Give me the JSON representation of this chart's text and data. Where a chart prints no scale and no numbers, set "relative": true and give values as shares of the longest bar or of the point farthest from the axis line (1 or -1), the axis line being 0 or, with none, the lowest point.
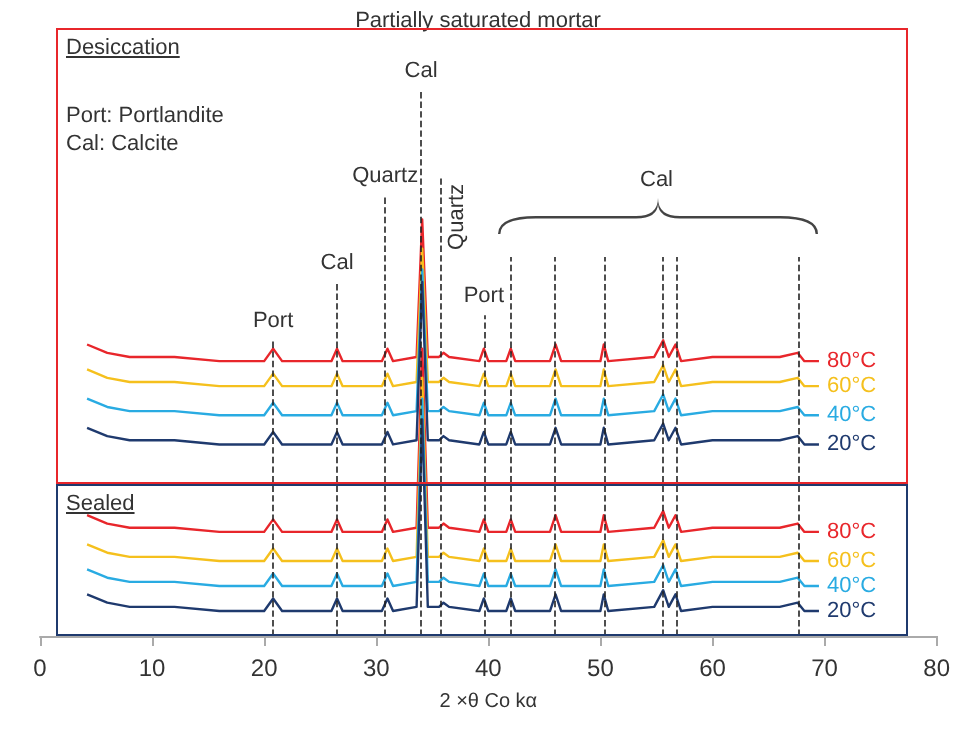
{
  "chart_data": {
    "type": "line",
    "title": "Partially saturated mortar",
    "xlabel": "2 ×θ Co kα",
    "relative": true,
    "legend": false,
    "grid": false,
    "marker": "none",
    "annotations": [
      "Port: Portlandite",
      "Cal: Calcite",
      "Desiccation",
      "Sealed",
      "Cal"
    ],
    "xlim": [
      0,
      80
    ],
    "xticks": [
      0,
      10,
      20,
      30,
      40,
      50,
      60,
      70,
      80
    ],
    "x": [
      4.2,
      6,
      8,
      12,
      16,
      20,
      20.8,
      21.6,
      26,
      26.5,
      27,
      30.5,
      31,
      31.5,
      33.6,
      34.1,
      34.6,
      35.6,
      36,
      36.5,
      39.2,
      39.6,
      40,
      41.6,
      42,
      42.4,
      45.5,
      46,
      46.5,
      50,
      50.3,
      50.7,
      54.8,
      55.6,
      56.1,
      56.7,
      57.2,
      60,
      66,
      67.6,
      68.2,
      69.5
    ],
    "series": [
      {
        "name": "80°C",
        "color": "#e8262b",
        "values": [
          0.7,
          0.68,
          0.67,
          0.67,
          0.66,
          0.66,
          0.69,
          0.66,
          0.66,
          0.69,
          0.66,
          0.66,
          0.69,
          0.66,
          0.67,
          1.0,
          0.67,
          0.67,
          0.68,
          0.67,
          0.66,
          0.69,
          0.66,
          0.66,
          0.69,
          0.66,
          0.66,
          0.7,
          0.66,
          0.66,
          0.7,
          0.66,
          0.67,
          0.71,
          0.67,
          0.7,
          0.66,
          0.67,
          0.67,
          0.68,
          0.66,
          0.66
        ]
      },
      {
        "name": "60°C",
        "color": "#f5c01d",
        "values": [
          0.64,
          0.62,
          0.61,
          0.61,
          0.6,
          0.6,
          0.63,
          0.6,
          0.6,
          0.63,
          0.6,
          0.6,
          0.63,
          0.6,
          0.61,
          0.93,
          0.61,
          0.61,
          0.62,
          0.61,
          0.6,
          0.63,
          0.6,
          0.6,
          0.63,
          0.6,
          0.6,
          0.64,
          0.6,
          0.6,
          0.64,
          0.6,
          0.61,
          0.65,
          0.61,
          0.64,
          0.6,
          0.61,
          0.61,
          0.62,
          0.6,
          0.6
        ]
      },
      {
        "name": "40°C",
        "color": "#29abe2",
        "values": [
          0.57,
          0.55,
          0.54,
          0.54,
          0.53,
          0.53,
          0.56,
          0.53,
          0.53,
          0.56,
          0.53,
          0.53,
          0.56,
          0.53,
          0.54,
          0.88,
          0.54,
          0.54,
          0.55,
          0.54,
          0.53,
          0.56,
          0.53,
          0.53,
          0.56,
          0.53,
          0.53,
          0.57,
          0.53,
          0.53,
          0.57,
          0.53,
          0.54,
          0.58,
          0.54,
          0.57,
          0.53,
          0.54,
          0.54,
          0.55,
          0.53,
          0.53
        ]
      },
      {
        "name": "20°C",
        "color": "#1f3a6e",
        "values": [
          0.5,
          0.48,
          0.47,
          0.47,
          0.46,
          0.46,
          0.49,
          0.46,
          0.46,
          0.49,
          0.46,
          0.46,
          0.49,
          0.46,
          0.47,
          0.85,
          0.47,
          0.47,
          0.48,
          0.47,
          0.46,
          0.49,
          0.46,
          0.46,
          0.49,
          0.46,
          0.46,
          0.5,
          0.46,
          0.46,
          0.5,
          0.46,
          0.47,
          0.51,
          0.47,
          0.5,
          0.46,
          0.47,
          0.47,
          0.48,
          0.46,
          0.46
        ]
      },
      {
        "name": "80°C",
        "color": "#e8262b",
        "values": [
          0.29,
          0.27,
          0.26,
          0.26,
          0.25,
          0.25,
          0.28,
          0.25,
          0.25,
          0.28,
          0.25,
          0.25,
          0.28,
          0.25,
          0.26,
          0.69,
          0.26,
          0.26,
          0.27,
          0.26,
          0.25,
          0.28,
          0.25,
          0.25,
          0.28,
          0.25,
          0.25,
          0.29,
          0.25,
          0.25,
          0.29,
          0.25,
          0.26,
          0.3,
          0.26,
          0.29,
          0.25,
          0.26,
          0.26,
          0.27,
          0.25,
          0.25
        ]
      },
      {
        "name": "60°C",
        "color": "#f5c01d",
        "values": [
          0.22,
          0.2,
          0.19,
          0.19,
          0.18,
          0.18,
          0.21,
          0.18,
          0.18,
          0.21,
          0.18,
          0.18,
          0.21,
          0.18,
          0.19,
          0.62,
          0.19,
          0.19,
          0.2,
          0.19,
          0.18,
          0.21,
          0.18,
          0.18,
          0.21,
          0.18,
          0.18,
          0.22,
          0.18,
          0.18,
          0.22,
          0.18,
          0.19,
          0.23,
          0.19,
          0.22,
          0.18,
          0.19,
          0.19,
          0.2,
          0.18,
          0.18
        ]
      },
      {
        "name": "40°C",
        "color": "#29abe2",
        "values": [
          0.16,
          0.14,
          0.13,
          0.13,
          0.12,
          0.12,
          0.15,
          0.12,
          0.12,
          0.15,
          0.12,
          0.12,
          0.15,
          0.12,
          0.13,
          0.57,
          0.13,
          0.13,
          0.14,
          0.13,
          0.12,
          0.15,
          0.12,
          0.12,
          0.15,
          0.12,
          0.12,
          0.16,
          0.12,
          0.12,
          0.16,
          0.12,
          0.13,
          0.17,
          0.13,
          0.16,
          0.12,
          0.13,
          0.13,
          0.14,
          0.12,
          0.12
        ]
      },
      {
        "name": "20°C",
        "color": "#1f3a6e",
        "values": [
          0.1,
          0.08,
          0.07,
          0.07,
          0.06,
          0.06,
          0.09,
          0.06,
          0.06,
          0.09,
          0.06,
          0.06,
          0.09,
          0.06,
          0.07,
          0.52,
          0.07,
          0.07,
          0.08,
          0.07,
          0.06,
          0.09,
          0.06,
          0.06,
          0.09,
          0.06,
          0.06,
          0.1,
          0.06,
          0.06,
          0.1,
          0.06,
          0.07,
          0.11,
          0.07,
          0.1,
          0.06,
          0.07,
          0.07,
          0.08,
          0.06,
          0.06
        ]
      }
    ],
    "ref_lines": [
      {
        "axis": "x",
        "value": 20.8,
        "label": "Port"
      },
      {
        "axis": "x",
        "value": 26.5,
        "label": "Cal"
      },
      {
        "axis": "x",
        "value": 30.8,
        "label": "Quartz"
      },
      {
        "axis": "x",
        "value": 34.0,
        "label": "Cal"
      },
      {
        "axis": "x",
        "value": 35.7,
        "label": "Quartz"
      },
      {
        "axis": "x",
        "value": 39.6,
        "label": "Port"
      },
      {
        "axis": "x",
        "value": 42.0
      },
      {
        "axis": "x",
        "value": 45.9
      },
      {
        "axis": "x",
        "value": 50.3
      },
      {
        "axis": "x",
        "value": 55.6
      },
      {
        "axis": "x",
        "value": 56.7
      },
      {
        "axis": "x",
        "value": 67.6
      }
    ]
  }
}
